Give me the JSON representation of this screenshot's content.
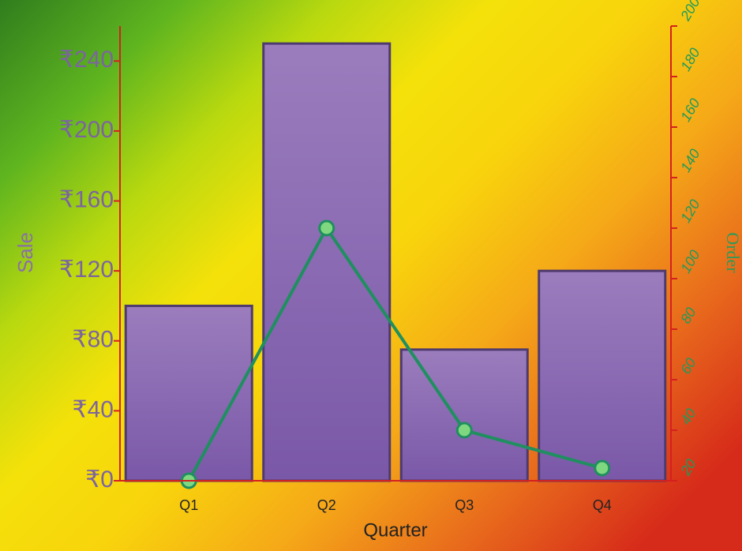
{
  "chart_data": {
    "type": "bar",
    "xlabel": "Quarter",
    "ylabel": "Sale",
    "y2label": "Order",
    "categories": [
      "Q1",
      "Q2",
      "Q3",
      "Q4"
    ],
    "series": [
      {
        "name": "Sale",
        "type": "bar",
        "color": "#8a6bb0",
        "values": [
          100,
          250,
          75,
          120
        ]
      },
      {
        "name": "Order",
        "type": "line",
        "axis": "y2",
        "color": "#1f8f5f",
        "values": [
          20,
          120,
          40,
          25
        ]
      }
    ],
    "ylim": [
      0,
      260
    ],
    "yticks": [
      {
        "value": 0,
        "label": "₹0"
      },
      {
        "value": 40,
        "label": "₹40"
      },
      {
        "value": 80,
        "label": "₹80"
      },
      {
        "value": 120,
        "label": "₹120"
      },
      {
        "value": 160,
        "label": "₹160"
      },
      {
        "value": 200,
        "label": "₹200"
      },
      {
        "value": 240,
        "label": "₹240"
      }
    ],
    "y2lim": [
      20,
      200
    ],
    "y2ticks": [
      20,
      40,
      60,
      80,
      100,
      120,
      140,
      160,
      180,
      200
    ]
  }
}
